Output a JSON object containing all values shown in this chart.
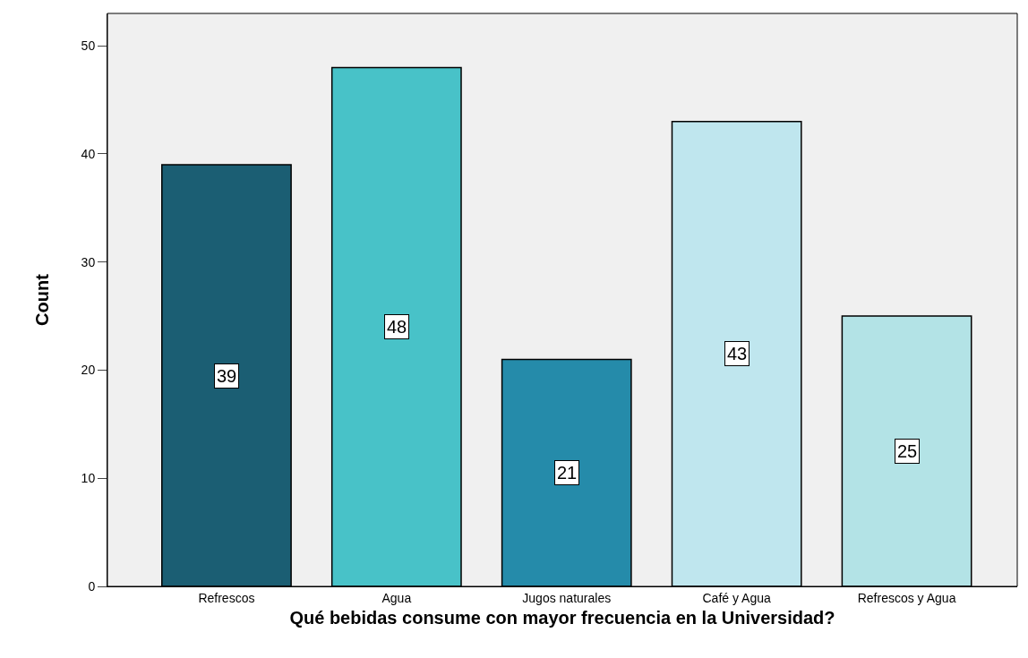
{
  "chart_data": {
    "type": "bar",
    "xlabel": "Qué bebidas consume con mayor frecuencia en la Universidad?",
    "ylabel": "Count",
    "categories": [
      "Refrescos",
      "Agua",
      "Jugos naturales",
      "Café y Agua",
      "Refrescos y Agua"
    ],
    "values": [
      39,
      48,
      21,
      43,
      25
    ],
    "colors": [
      "#1b5e73",
      "#48c2c8",
      "#258baa",
      "#bfe6ee",
      "#b3e3e6"
    ],
    "ylim": [
      0,
      53
    ],
    "yticks": [
      0,
      10,
      20,
      30,
      40,
      50
    ],
    "data_labels": true
  }
}
